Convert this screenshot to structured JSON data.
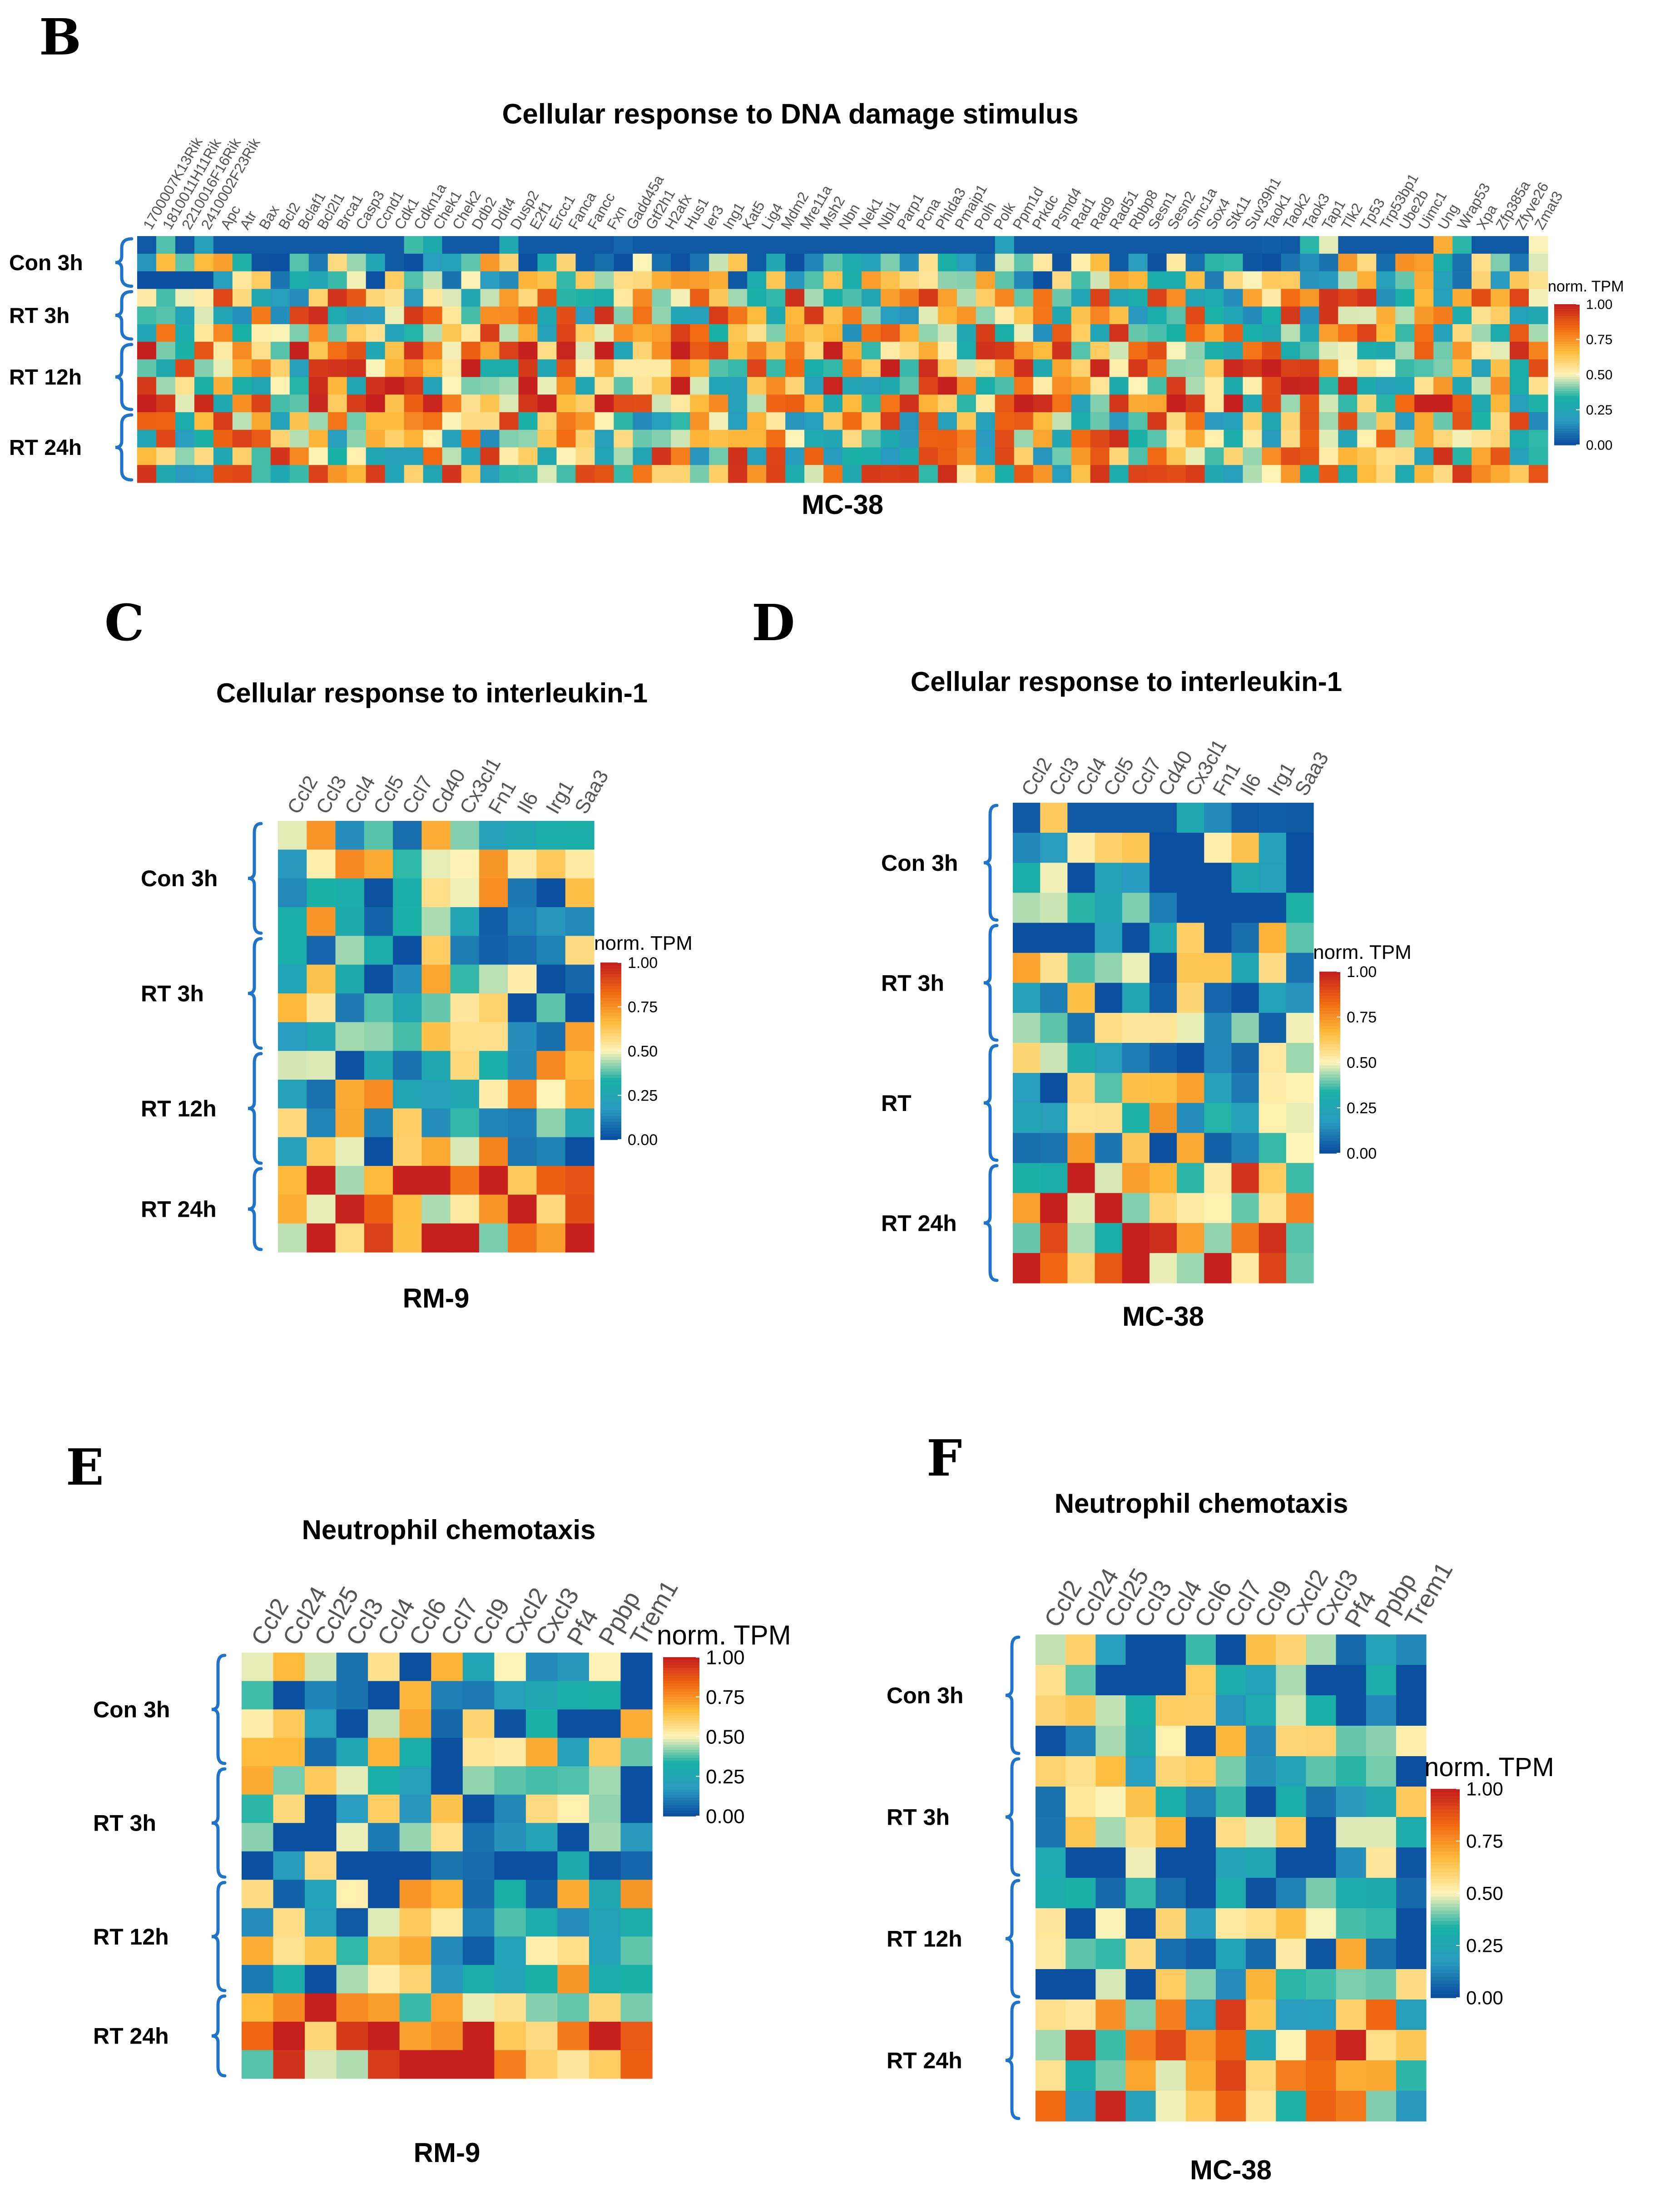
{
  "colors": {
    "scale": [
      "#0b4fa0",
      "#2a9bc0",
      "#19b0a6",
      "#fff4b8",
      "#fdbb3c",
      "#f26a12",
      "#c5201e"
    ],
    "bracket": "#1f73c9"
  },
  "legend": {
    "title": "norm. TPM",
    "ticks": [
      "1.00",
      "0.75",
      "0.50",
      "0.25",
      "0.00"
    ]
  },
  "chart_data": [
    {
      "panel": "B",
      "type": "heatmap",
      "title": "Cellular response to DNA damage stimulus",
      "caption": "MC-38",
      "genes_visible": [
        "1700007K13Rik",
        "1810011H11Rik",
        "2210016F16Rik",
        "2410002F23Rik",
        "Apc",
        "Atr",
        "Bax",
        "Bcl2",
        "Bclaf1",
        "Bcl2l1",
        "Brca1",
        "Casp3",
        "Ccnd1",
        "Cdk1",
        "Cdkn1a",
        "Chek1",
        "Chek2",
        "Ddb2",
        "Ddit4",
        "Dusp2",
        "E2f1",
        "Ercc1",
        "Fanca",
        "Fancc",
        "Fxn",
        "Gadd45a",
        "Gtf2h1",
        "H2afx",
        "Hus1",
        "Ier3",
        "Ing1",
        "Kat5",
        "Lig4",
        "Mdm2",
        "Mre11a",
        "Msh2",
        "Nbn",
        "Nek1",
        "Nbl1",
        "Parp1",
        "Pcna",
        "Phlda3",
        "Pmaip1",
        "Polh",
        "Polk",
        "Ppm1d",
        "Prkdc",
        "Psmd4",
        "Rad1",
        "Rad9",
        "Rad51",
        "Rbbp8",
        "Sesn1",
        "Sesn2",
        "Smc1a",
        "Sox4",
        "Stk11",
        "Suv39h1",
        "Taok1",
        "Taok2",
        "Taok3",
        "Tap1",
        "Tlk2",
        "Tp53",
        "Trp53bp1",
        "Ube2b",
        "Uimc1",
        "Ung",
        "Wrap53",
        "Xpa",
        "Zfp385a",
        "Zfyve26",
        "Zmat3"
      ],
      "groups": [
        "Con 3h",
        "RT 3h",
        "RT 12h",
        "RT 24h"
      ],
      "rows_per_group": [
        3,
        3,
        4,
        4
      ],
      "n_cols": 74
    },
    {
      "panel": "C",
      "type": "heatmap",
      "title": "Cellular response to interleukin-1",
      "caption": "RM-9",
      "genes": [
        "Ccl2",
        "Ccl3",
        "Ccl4",
        "Ccl5",
        "Ccl7",
        "Cd40",
        "Cx3cl1",
        "Fn1",
        "Il6",
        "Irg1",
        "Saa3"
      ],
      "groups": [
        "Con 3h",
        "RT 3h",
        "RT 12h",
        "RT 24h"
      ],
      "rows_per_group": [
        4,
        4,
        4,
        3
      ],
      "n_cols": 11
    },
    {
      "panel": "D",
      "type": "heatmap",
      "title": "Cellular response to interleukin-1",
      "caption": "MC-38",
      "genes": [
        "Ccl2",
        "Ccl3",
        "Ccl4",
        "Ccl5",
        "Ccl7",
        "Cd40",
        "Cx3cl1",
        "Fn1",
        "Il6",
        "Irg1",
        "Saa3"
      ],
      "groups": [
        "Con 3h",
        "RT 3h",
        "RT",
        "RT 24h"
      ],
      "rows_per_group": [
        4,
        4,
        4,
        4
      ],
      "n_cols": 11
    },
    {
      "panel": "E",
      "type": "heatmap",
      "title": "Neutrophil chemotaxis",
      "caption": "RM-9",
      "genes": [
        "Ccl2",
        "Ccl24",
        "Ccl25",
        "Ccl3",
        "Ccl4",
        "Ccl6",
        "Ccl7",
        "Ccl9",
        "Cxcl2",
        "Cxcl3",
        "Pf4",
        "Ppbp",
        "Trem1"
      ],
      "groups": [
        "Con 3h",
        "RT 3h",
        "RT 12h",
        "RT 24h"
      ],
      "rows_per_group": [
        4,
        4,
        4,
        3
      ],
      "n_cols": 13
    },
    {
      "panel": "F",
      "type": "heatmap",
      "title": "Neutrophil chemotaxis",
      "caption": "MC-38",
      "genes": [
        "Ccl2",
        "Ccl24",
        "Ccl25",
        "Ccl3",
        "Ccl4",
        "Ccl6",
        "Ccl7",
        "Ccl9",
        "Cxcl2",
        "Cxcl3",
        "Pf4",
        "Ppbp",
        "Trem1"
      ],
      "groups": [
        "Con 3h",
        "RT 3h",
        "RT 12h",
        "RT 24h"
      ],
      "rows_per_group": [
        4,
        4,
        4,
        4
      ],
      "n_cols": 13
    }
  ]
}
